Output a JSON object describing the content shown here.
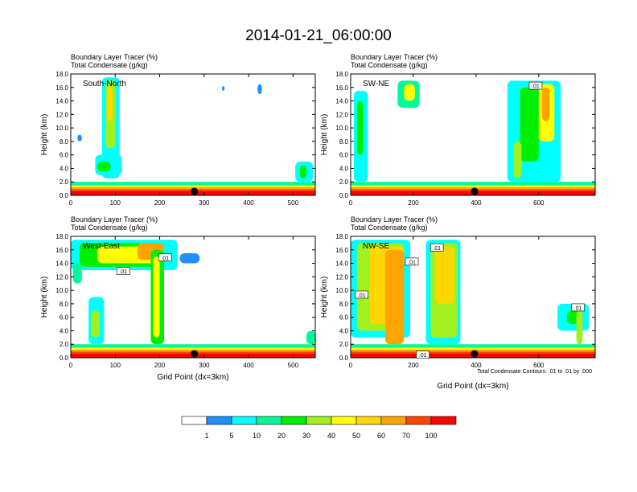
{
  "title": "2014-01-21_06:00:00",
  "field_labels": [
    "Boundary Layer Tracer   (%)",
    "Total Condensate   (g/kg)"
  ],
  "ylabel": "Height (km)",
  "xlabel": "Grid Point (dx=3km)",
  "contour_note": "Total Condensate Contours: .01 to .01 by .000",
  "panels": [
    {
      "name": "South-North",
      "xlim": [
        0,
        550
      ],
      "xticks": [
        0,
        100,
        200,
        300,
        400,
        500
      ],
      "ylim": [
        0,
        18
      ],
      "yticks": [
        "0.0",
        "2.0",
        "4.0",
        "6.0",
        "8.0",
        "10.0",
        "12.0",
        "14.0",
        "16.0",
        "18.0"
      ],
      "marker_x": 278,
      "contour_labels": []
    },
    {
      "name": "SW-NE",
      "xlim": [
        0,
        780
      ],
      "xticks": [
        0,
        200,
        400,
        600
      ],
      "ylim": [
        0,
        18
      ],
      "yticks": [
        "0.0",
        "2.0",
        "4.0",
        "6.0",
        "8.0",
        "10.0",
        "12.0",
        "14.0",
        "16.0",
        "18.0"
      ],
      "marker_x": 395,
      "contour_labels": [
        {
          "text": ".01",
          "x": 590,
          "y": 16.2
        }
      ]
    },
    {
      "name": "West-East",
      "xlim": [
        0,
        550
      ],
      "xticks": [
        0,
        100,
        200,
        300,
        400,
        500
      ],
      "ylim": [
        0,
        18
      ],
      "yticks": [
        "0.0",
        "2.0",
        "4.0",
        "6.0",
        "8.0",
        "10.0",
        "12.0",
        "14.0",
        "16.0",
        "18.0"
      ],
      "marker_x": 278,
      "contour_labels": [
        {
          "text": ".01",
          "x": 212,
          "y": 14.8
        },
        {
          "text": ".01",
          "x": 118,
          "y": 12.8
        }
      ]
    },
    {
      "name": "NW-SE",
      "xlim": [
        0,
        780
      ],
      "xticks": [
        0,
        200,
        400,
        600
      ],
      "ylim": [
        0,
        18
      ],
      "yticks": [
        "0.0",
        "2.0",
        "4.0",
        "6.0",
        "8.0",
        "10.0",
        "12.0",
        "14.0",
        "16.0",
        "18.0"
      ],
      "marker_x": 395,
      "contour_labels": [
        {
          "text": ".01",
          "x": 275,
          "y": 16.3
        },
        {
          "text": ".01",
          "x": 195,
          "y": 14.2
        },
        {
          "text": ".01",
          "x": 35,
          "y": 9.3
        },
        {
          "text": ".01",
          "x": 230,
          "y": 0.4
        },
        {
          "text": ".01",
          "x": 725,
          "y": 7.4
        }
      ]
    }
  ],
  "colorbar": {
    "labels": [
      "1",
      "5",
      "10",
      "20",
      "30",
      "40",
      "50",
      "60",
      "70",
      "100"
    ],
    "colors": [
      "#ffffff",
      "#1e90ff",
      "#00ffff",
      "#00fa9a",
      "#00ee00",
      "#a0f020",
      "#ffff00",
      "#ffd700",
      "#ffa500",
      "#ff4500",
      "#ff0000"
    ]
  },
  "chart_data": {
    "type": "heatmap",
    "title": "2014-01-21_06:00:00",
    "variables": [
      "Boundary Layer Tracer (%)",
      "Total Condensate (g/kg)"
    ],
    "xlabel": "Grid Point (dx=3km)",
    "ylabel": "Height (km)",
    "ylim": [
      0,
      18
    ],
    "cross_sections": [
      {
        "name": "South-North",
        "xlim": [
          0,
          550
        ],
        "features": [
          {
            "x": [
              75,
              100
            ],
            "top_km": 17.5,
            "max_pct": 60
          },
          {
            "x": [
              50,
              120
            ],
            "top_km": 5.5,
            "max_pct": 20
          },
          {
            "x": [
              505,
              545
            ],
            "top_km": 5,
            "max_pct": 20
          },
          {
            "x": [
              0,
              550
            ],
            "top_km": 1.5,
            "max_pct": 100
          }
        ]
      },
      {
        "name": "SW-NE",
        "xlim": [
          0,
          780
        ],
        "features": [
          {
            "x": [
              10,
              55
            ],
            "top_km": 15.5,
            "max_pct": 30
          },
          {
            "x": [
              150,
              220
            ],
            "top_km": 17,
            "max_pct": 50
          },
          {
            "x": [
              500,
              660
            ],
            "top_km": 17,
            "max_pct": 60
          },
          {
            "x": [
              0,
              780
            ],
            "top_km": 1.5,
            "max_pct": 100
          }
        ]
      },
      {
        "name": "West-East",
        "xlim": [
          0,
          550
        ],
        "features": [
          {
            "x": [
              0,
              240
            ],
            "top_km": 17.5,
            "max_pct": 60
          },
          {
            "x": [
              180,
              210
            ],
            "top_km": 16,
            "max_pct": 50
          },
          {
            "x": [
              40,
              75
            ],
            "top_km": 9,
            "max_pct": 30
          },
          {
            "x": [
              0,
              550
            ],
            "top_km": 1.5,
            "max_pct": 100
          }
        ]
      },
      {
        "name": "NW-SE",
        "xlim": [
          0,
          780
        ],
        "features": [
          {
            "x": [
              0,
              190
            ],
            "top_km": 17.5,
            "max_pct": 60
          },
          {
            "x": [
              240,
              350
            ],
            "top_km": 17.5,
            "max_pct": 60
          },
          {
            "x": [
              660,
              760
            ],
            "top_km": 8,
            "max_pct": 30
          },
          {
            "x": [
              0,
              780
            ],
            "top_km": 1.5,
            "max_pct": 100
          }
        ]
      }
    ]
  }
}
